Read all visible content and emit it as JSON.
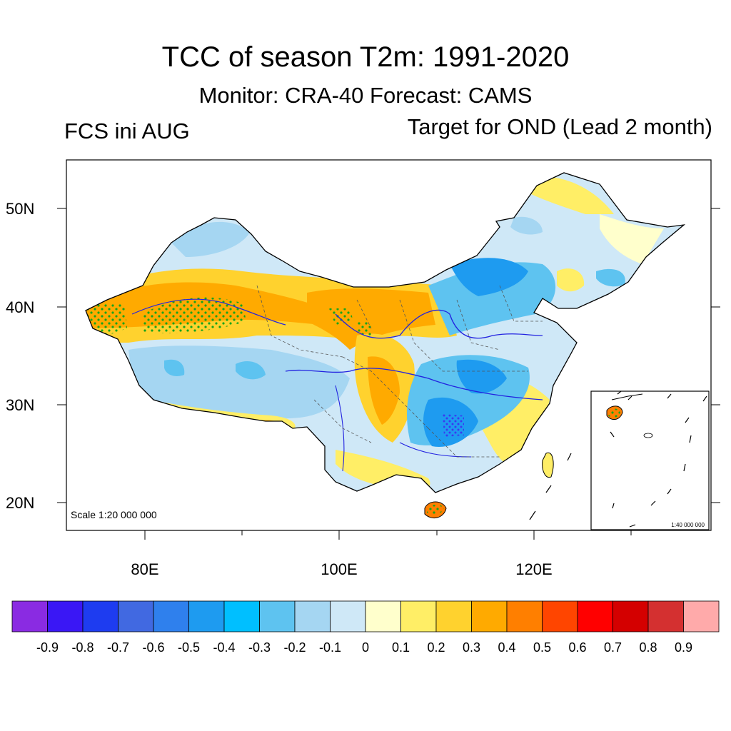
{
  "title": "TCC of season T2m: 1991-2020",
  "subtitle": "Monitor: CRA-40   Forecast: CAMS",
  "left_label": "FCS ini AUG",
  "right_label": "Target for OND (Lead 2 month)",
  "scale_main": "Scale 1:20 000 000",
  "scale_inset": "1:40 000 000",
  "lat_labels": [
    "50N",
    "40N",
    "30N",
    "20N"
  ],
  "lon_labels": [
    "80E",
    "100E",
    "120E"
  ],
  "colorbar": {
    "colors": [
      "#8a2be2",
      "#3a17f5",
      "#1e3cf0",
      "#4169e1",
      "#2f80ed",
      "#1e9bf0",
      "#00bfff",
      "#5ec3f0",
      "#a5d6f2",
      "#cfe8f7",
      "#ffffcc",
      "#ffee66",
      "#ffd22e",
      "#ffaa00",
      "#ff7f00",
      "#ff4500",
      "#ff0000",
      "#d40000",
      "#d43030",
      "#ffaaaa"
    ],
    "labels": [
      "-0.9",
      "-0.8",
      "-0.7",
      "-0.6",
      "-0.5",
      "-0.4",
      "-0.3",
      "-0.2",
      "-0.1",
      "0",
      "0.1",
      "0.2",
      "0.3",
      "0.4",
      "0.5",
      "0.6",
      "0.7",
      "0.8",
      "0.9"
    ]
  }
}
